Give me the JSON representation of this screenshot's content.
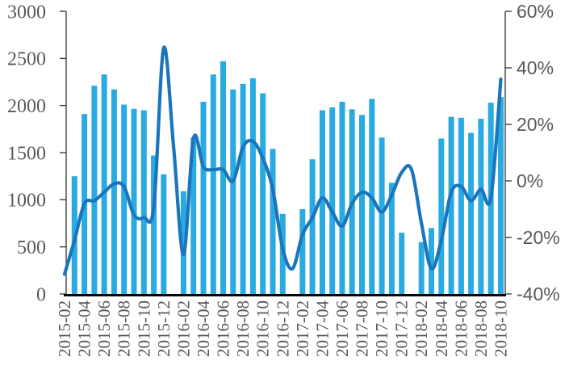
{
  "chart_data": {
    "type": "bar",
    "combo": "bar+line-dual-axis",
    "title": "",
    "xlabel": "",
    "ylabel_left": "",
    "ylabel_right": "",
    "grid": "off",
    "legend": "none",
    "background": "#ffffff",
    "categories": [
      "2015-02",
      "2015-03",
      "2015-04",
      "2015-05",
      "2015-06",
      "2015-07",
      "2015-08",
      "2015-09",
      "2015-10",
      "2015-11",
      "2015-12",
      "2016-01",
      "2016-02",
      "2016-03",
      "2016-04",
      "2016-05",
      "2016-06",
      "2016-07",
      "2016-08",
      "2016-09",
      "2016-10",
      "2016-11",
      "2016-12",
      "2017-01",
      "2017-02",
      "2017-03",
      "2017-04",
      "2017-05",
      "2017-06",
      "2017-07",
      "2017-08",
      "2017-09",
      "2017-10",
      "2017-11",
      "2017-12",
      "2018-01",
      "2018-02",
      "2018-03",
      "2018-04",
      "2018-05",
      "2018-06",
      "2018-07",
      "2018-08",
      "2018-09",
      "2018-10"
    ],
    "series": [
      {
        "name": "monthly-volume-bars",
        "type": "bar",
        "axis": "left",
        "color": "#29ABE2",
        "values": [
          null,
          1250,
          1910,
          2210,
          2330,
          2170,
          2010,
          1965,
          1950,
          1470,
          1270,
          null,
          1090,
          1660,
          2040,
          2330,
          2470,
          2170,
          2230,
          2290,
          2130,
          1540,
          850,
          null,
          900,
          1430,
          1950,
          1980,
          2040,
          1960,
          1900,
          2070,
          1660,
          1180,
          650,
          null,
          550,
          700,
          1650,
          1880,
          1870,
          1710,
          1860,
          2030,
          2090
        ]
      },
      {
        "name": "growth-rate-line",
        "type": "line",
        "axis": "right",
        "color": "#1B75BC",
        "unit": "%",
        "values": [
          -33,
          -21,
          -8,
          -7,
          -4,
          -1,
          -2,
          -12,
          -13,
          -9,
          47,
          12,
          -26,
          15,
          5,
          4,
          4,
          0,
          12,
          14,
          8,
          -3,
          -24,
          -31,
          -19,
          -13,
          -6,
          -11,
          -16,
          -8,
          -4,
          -6,
          -11,
          -5,
          3,
          4,
          -15,
          -31,
          -21,
          -4,
          -2,
          -7,
          -3,
          -6,
          36
        ]
      }
    ],
    "left_axis": {
      "min": 0,
      "max": 3000,
      "step": 500,
      "tick_labels": [
        "3000",
        "2500",
        "2000",
        "1500",
        "1000",
        "500",
        "0"
      ]
    },
    "right_axis": {
      "min": -40,
      "max": 60,
      "step": 20,
      "tick_labels": [
        "60%",
        "40%",
        "20%",
        "0%",
        "-20%",
        "-40%"
      ],
      "tick_values": [
        60,
        40,
        20,
        0,
        -20,
        -40
      ]
    },
    "x_tick_labels": [
      "2015-02",
      "2015-04",
      "2015-06",
      "2015-08",
      "2015-10",
      "2015-12",
      "2016-02",
      "2016-04",
      "2016-06",
      "2016-08",
      "2016-10",
      "2016-12",
      "2017-02",
      "2017-04",
      "2017-06",
      "2017-08",
      "2017-10",
      "2017-12",
      "2018-02",
      "2018-04",
      "2018-06",
      "2018-08",
      "2018-10"
    ],
    "x_tick_every": 2,
    "axis_colors": {
      "bottom": "#000000",
      "side": "#404040",
      "text": "#595959"
    }
  }
}
